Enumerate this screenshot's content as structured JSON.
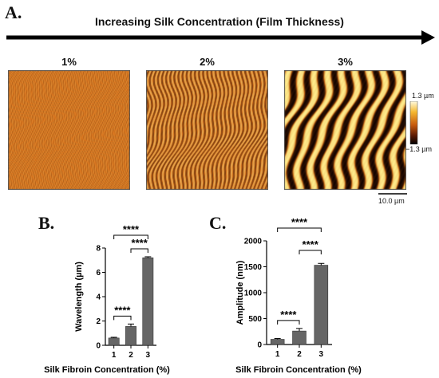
{
  "panel_a": {
    "letter": "A.",
    "arrow_text": "Increasing Silk Concentration (Film Thickness)",
    "images": [
      {
        "label": "1%",
        "stripes": 70,
        "contrast": 0.18,
        "base": "#d9751e"
      },
      {
        "label": "2%",
        "stripes": 30,
        "contrast": 0.45,
        "base": "#d8711c"
      },
      {
        "label": "3%",
        "stripes": 9,
        "contrast": 1.0,
        "base": "#c86814"
      }
    ],
    "colorbar": {
      "max_label": "1.3 µm",
      "min_label": "−1.3 µm"
    },
    "scale_bar": "10.0 µm"
  },
  "chart_data": [
    {
      "panel": "B.",
      "type": "bar",
      "categories": [
        "1",
        "2",
        "3"
      ],
      "values": [
        0.6,
        1.55,
        7.2
      ],
      "errors": [
        0.06,
        0.2,
        0.08
      ],
      "ylabel": "Wavelength (µm)",
      "xlabel": "Silk Fibroin Concentration (%)",
      "ylim": [
        0,
        8
      ],
      "yticks": [
        0,
        2,
        4,
        6,
        8
      ],
      "bar_color": "#666666",
      "significance": [
        {
          "from": 0,
          "to": 1,
          "label": "****",
          "level": 0
        },
        {
          "from": 1,
          "to": 2,
          "label": "****",
          "level": 1
        },
        {
          "from": 0,
          "to": 2,
          "label": "****",
          "level": 2
        }
      ]
    },
    {
      "panel": "C.",
      "type": "bar",
      "categories": [
        "1",
        "2",
        "3"
      ],
      "values": [
        100,
        260,
        1530
      ],
      "errors": [
        15,
        50,
        35
      ],
      "ylabel": "Amplitude (nm)",
      "xlabel": "Silk Fibroin Concentration (%)",
      "ylim": [
        0,
        2000
      ],
      "yticks": [
        0,
        500,
        1000,
        1500,
        2000
      ],
      "bar_color": "#666666",
      "significance": [
        {
          "from": 0,
          "to": 1,
          "label": "****",
          "level": 0
        },
        {
          "from": 1,
          "to": 2,
          "label": "****",
          "level": 1
        },
        {
          "from": 0,
          "to": 2,
          "label": "****",
          "level": 2
        }
      ]
    }
  ]
}
